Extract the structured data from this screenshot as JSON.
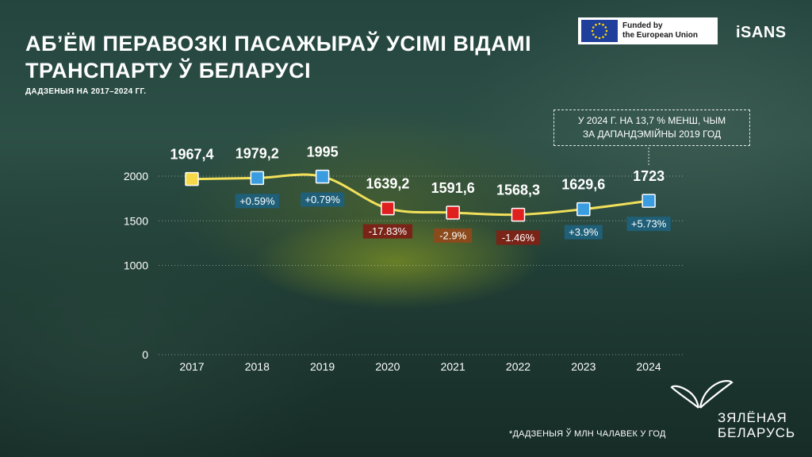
{
  "title": "АБ’ЁМ ПЕРАВОЗКІ ПАСАЖЫРАЎ УСІМІ ВІДАМІ ТРАНСПАРТУ Ў БЕЛАРУСІ",
  "subtitle": "ДАДЗЕНЫЯ НА 2017–2024 ГГ.",
  "eu_badge": {
    "line1": "Funded by",
    "line2": "the European Union"
  },
  "isans_logo": "iSANS",
  "callout": {
    "line1": "У 2024 Г. НА 13,7 % МЕНШ, ЧЫМ",
    "line2": "ЗА ДАПАНДЭМІЙНЫ 2019 ГОД"
  },
  "footnote": "*ДАДЗЕНЫЯ Ў МЛН ЧАЛАВЕК У ГОД",
  "brand_logo": {
    "line1": "ЗЯЛЁНАЯ",
    "line2": "БЕЛАРУСЬ"
  },
  "colors": {
    "line": "#f2e05a",
    "yellow_marker": "#f5d949",
    "blue_marker": "#3a9de0",
    "red_marker": "#e01f1f",
    "blue_badge": "#1f5f78",
    "red_badge": "#7a2418",
    "orange_badge": "#8a4a1c"
  },
  "chart_data": {
    "type": "line",
    "categories": [
      "2017",
      "2018",
      "2019",
      "2020",
      "2021",
      "2022",
      "2023",
      "2024"
    ],
    "values": [
      1967.4,
      1979.2,
      1995,
      1639.2,
      1591.6,
      1568.3,
      1629.6,
      1723
    ],
    "value_labels": [
      "1967,4",
      "1979,2",
      "1995",
      "1639,2",
      "1591,6",
      "1568,3",
      "1629,6",
      "1723"
    ],
    "changes": [
      null,
      "+0.59%",
      "+0.79%",
      "-17.83%",
      "-2.9%",
      "-1.46%",
      "+3.9%",
      "+5.73%"
    ],
    "marker_colors": [
      "yellow",
      "blue",
      "blue",
      "red",
      "red",
      "red",
      "blue",
      "blue"
    ],
    "change_badge_colors": [
      null,
      "blue",
      "blue",
      "red",
      "orange",
      "red",
      "blue",
      "blue"
    ],
    "yticks": [
      0,
      1000,
      1500,
      2000
    ],
    "ylim": [
      0,
      2000
    ],
    "xlabel": "",
    "ylabel": "",
    "grid": true
  }
}
